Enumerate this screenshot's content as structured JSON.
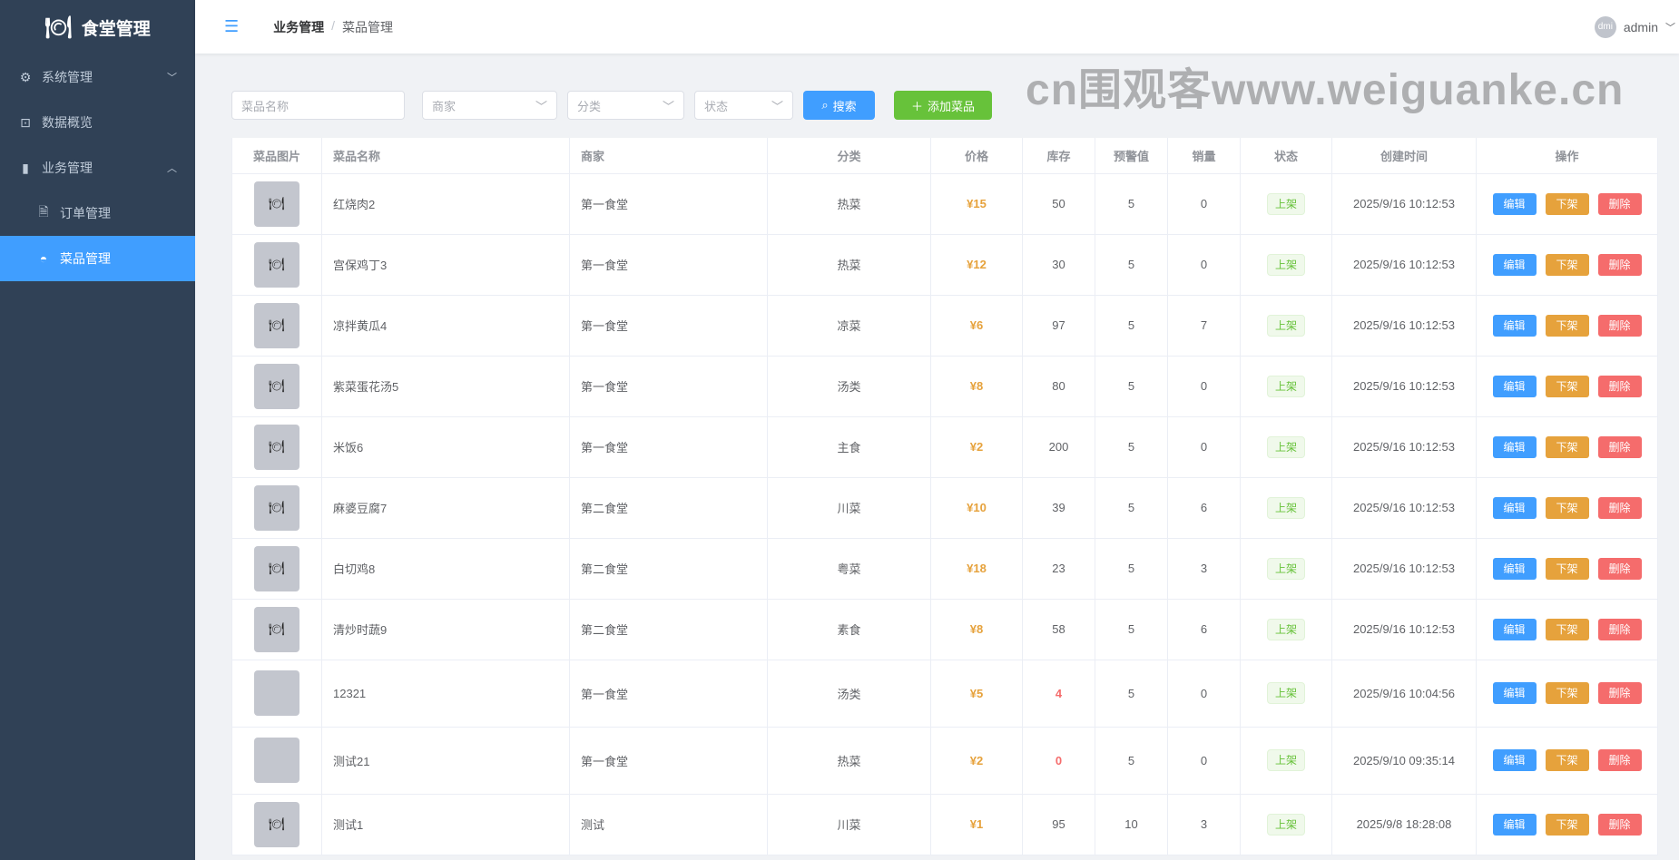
{
  "app": {
    "title": "食堂管理",
    "logo_icon": "fork-plate-knife-icon"
  },
  "sidebar": {
    "items": [
      {
        "label": "系统管理",
        "icon": "gear-icon",
        "chev": "﹀"
      },
      {
        "label": "数据概览",
        "icon": "presentation-chart-icon"
      },
      {
        "label": "业务管理",
        "icon": "books-icon",
        "chev": "︿"
      },
      {
        "label": "订单管理",
        "icon": "document-icon",
        "sub": true
      },
      {
        "label": "菜品管理",
        "icon": "bowl-icon",
        "sub": true,
        "active": true
      }
    ]
  },
  "header": {
    "breadcrumb": [
      "业务管理",
      "菜品管理"
    ],
    "sep": "/",
    "avatar_text": "dmi",
    "user": "admin"
  },
  "filters": {
    "name_placeholder": "菜品名称",
    "merchant_placeholder": "商家",
    "category_placeholder": "分类",
    "status_placeholder": "状态",
    "search": "搜索",
    "add": "添加菜品"
  },
  "table": {
    "columns": [
      "菜品图片",
      "菜品名称",
      "商家",
      "分类",
      "价格",
      "库存",
      "预警值",
      "销量",
      "状态",
      "创建时间",
      "操作"
    ],
    "actions": {
      "edit": "编辑",
      "offshelf": "下架",
      "delete": "删除"
    },
    "rows": [
      {
        "img": true,
        "name": "红烧肉2",
        "merchant": "第一食堂",
        "cat": "热菜",
        "price": "¥15",
        "stock": "50",
        "alert": "5",
        "sales": "0",
        "status": "上架",
        "time": "2025/9/16 10:12:53"
      },
      {
        "img": true,
        "name": "宫保鸡丁3",
        "merchant": "第一食堂",
        "cat": "热菜",
        "price": "¥12",
        "stock": "30",
        "alert": "5",
        "sales": "0",
        "status": "上架",
        "time": "2025/9/16 10:12:53"
      },
      {
        "img": true,
        "name": "凉拌黄瓜4",
        "merchant": "第一食堂",
        "cat": "凉菜",
        "price": "¥6",
        "stock": "97",
        "alert": "5",
        "sales": "7",
        "status": "上架",
        "time": "2025/9/16 10:12:53"
      },
      {
        "img": true,
        "name": "紫菜蛋花汤5",
        "merchant": "第一食堂",
        "cat": "汤类",
        "price": "¥8",
        "stock": "80",
        "alert": "5",
        "sales": "0",
        "status": "上架",
        "time": "2025/9/16 10:12:53"
      },
      {
        "img": true,
        "name": "米饭6",
        "merchant": "第一食堂",
        "cat": "主食",
        "price": "¥2",
        "stock": "200",
        "alert": "5",
        "sales": "0",
        "status": "上架",
        "time": "2025/9/16 10:12:53"
      },
      {
        "img": true,
        "name": "麻婆豆腐7",
        "merchant": "第二食堂",
        "cat": "川菜",
        "price": "¥10",
        "stock": "39",
        "alert": "5",
        "sales": "6",
        "status": "上架",
        "time": "2025/9/16 10:12:53"
      },
      {
        "img": true,
        "name": "白切鸡8",
        "merchant": "第二食堂",
        "cat": "粤菜",
        "price": "¥18",
        "stock": "23",
        "alert": "5",
        "sales": "3",
        "status": "上架",
        "time": "2025/9/16 10:12:53"
      },
      {
        "img": true,
        "name": "清炒时蔬9",
        "merchant": "第二食堂",
        "cat": "素食",
        "price": "¥8",
        "stock": "58",
        "alert": "5",
        "sales": "6",
        "status": "上架",
        "time": "2025/9/16 10:12:53"
      },
      {
        "img": false,
        "name": "12321",
        "merchant": "第一食堂",
        "cat": "汤类",
        "price": "¥5",
        "stock": "4",
        "low": true,
        "alert": "5",
        "sales": "0",
        "status": "上架",
        "time": "2025/9/16 10:04:56"
      },
      {
        "img": false,
        "name": "测试21",
        "merchant": "第一食堂",
        "cat": "热菜",
        "price": "¥2",
        "stock": "0",
        "low": true,
        "alert": "5",
        "sales": "0",
        "status": "上架",
        "time": "2025/9/10 09:35:14"
      },
      {
        "img": true,
        "name": "测试1",
        "merchant": "测试",
        "cat": "川菜",
        "price": "¥1",
        "stock": "95",
        "alert": "10",
        "sales": "3",
        "status": "上架",
        "time": "2025/9/8 18:28:08"
      }
    ]
  },
  "watermark": "cn围观客www.weiguanke.cn",
  "colors": {
    "primary": "#409eff",
    "success": "#67c23a",
    "warning": "#e6a23c",
    "danger": "#f56c6c",
    "sidebar": "#304156"
  }
}
